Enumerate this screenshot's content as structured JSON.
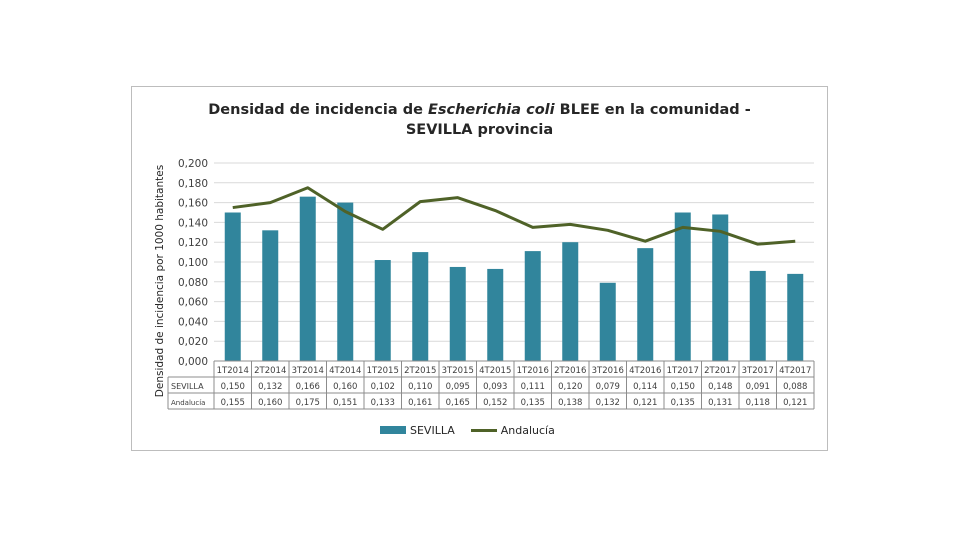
{
  "chart_data": {
    "type": "bar+line",
    "title_pre": "Densidad de incidencia de ",
    "title_em": "Escherichia coli",
    "title_post": " BLEE en la comunidad -",
    "title_line2": "SEVILLA provincia",
    "ylabel": "Densidad de incidencia por 1000 habitantes",
    "ylim": [
      0,
      0.2
    ],
    "yticks": [
      "0,000",
      "0,020",
      "0,040",
      "0,060",
      "0,080",
      "0,100",
      "0,120",
      "0,140",
      "0,160",
      "0,180",
      "0,200"
    ],
    "categories": [
      "1T2014",
      "2T2014",
      "3T2014",
      "4T2014",
      "1T2015",
      "2T2015",
      "3T2015",
      "4T2015",
      "1T2016",
      "2T2016",
      "3T2016",
      "4T2016",
      "1T2017",
      "2T2017",
      "3T2017",
      "4T2017"
    ],
    "series": [
      {
        "name": "SEVILLA",
        "type": "bar",
        "color": "#31859c",
        "values": [
          0.15,
          0.132,
          0.166,
          0.16,
          0.102,
          0.11,
          0.095,
          0.093,
          0.111,
          0.12,
          0.079,
          0.114,
          0.15,
          0.148,
          0.091,
          0.088
        ],
        "labels": [
          "0,150",
          "0,132",
          "0,166",
          "0,160",
          "0,102",
          "0,110",
          "0,095",
          "0,093",
          "0,111",
          "0,120",
          "0,079",
          "0,114",
          "0,150",
          "0,148",
          "0,091",
          "0,088"
        ]
      },
      {
        "name": "Andalucía",
        "type": "line",
        "color": "#4f6228",
        "values": [
          0.155,
          0.16,
          0.175,
          0.151,
          0.133,
          0.161,
          0.165,
          0.152,
          0.135,
          0.138,
          0.132,
          0.121,
          0.135,
          0.131,
          0.118,
          0.121
        ],
        "labels": [
          "0,155",
          "0,160",
          "0,175",
          "0,151",
          "0,133",
          "0,161",
          "0,165",
          "0,152",
          "0,135",
          "0,138",
          "0,132",
          "0,121",
          "0,135",
          "0,131",
          "0,118",
          "0,121"
        ]
      }
    ],
    "legend": [
      "SEVILLA",
      "Andalucía"
    ]
  }
}
